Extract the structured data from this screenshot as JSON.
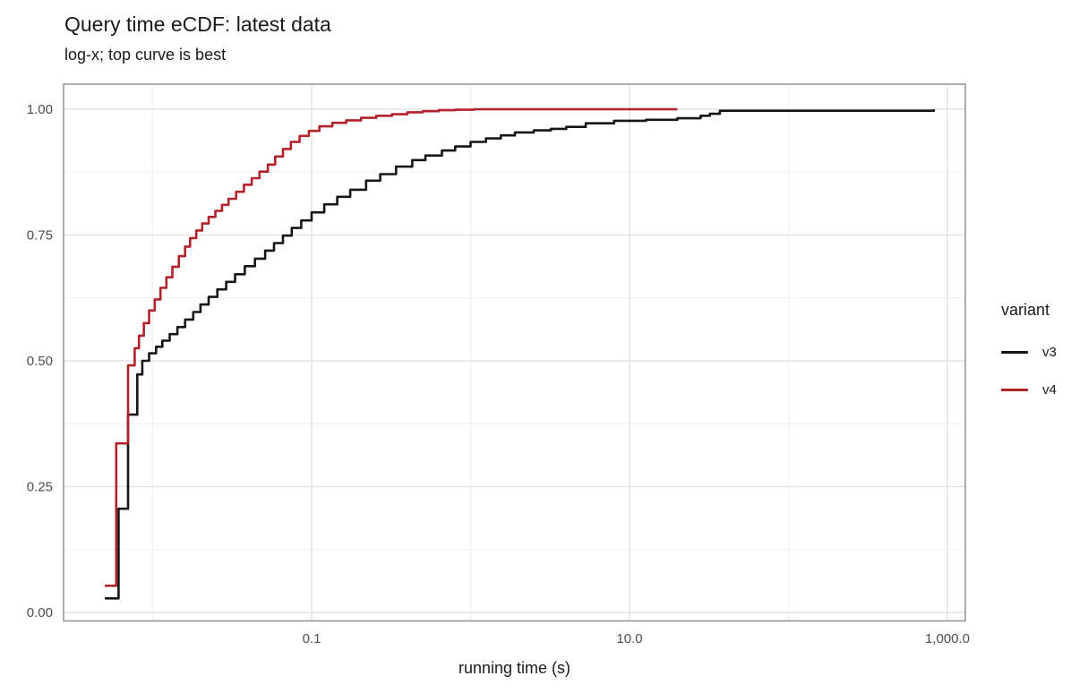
{
  "title": "Query time eCDF: latest data",
  "subtitle": "log-x; top curve is best",
  "axes": {
    "x_label": "running time (s)",
    "x_tick_labels": [
      "0.1",
      "10.0",
      "1,000.0"
    ],
    "y_tick_labels": [
      "0.00",
      "0.25",
      "0.50",
      "0.75",
      "1.00"
    ]
  },
  "legend": {
    "title": "variant",
    "items": [
      {
        "label": "v3",
        "color": "#161616"
      },
      {
        "label": "v4",
        "color": "#b2222a"
      }
    ]
  },
  "chart_data": {
    "type": "line",
    "step": true,
    "x_scale": "log10",
    "title": "Query time eCDF: latest data",
    "subtitle": "log-x; top curve is best",
    "xlabel": "running time (s)",
    "ylabel": "",
    "xlim": [
      0.0028,
      1290
    ],
    "ylim": [
      -0.016,
      1.05
    ],
    "grid": true,
    "legend_position": "right",
    "legend_title": "variant",
    "x_ticks": [
      {
        "value": 0.1,
        "label": "0.1"
      },
      {
        "value": 10,
        "label": "10.0"
      },
      {
        "value": 1000,
        "label": "1,000.0"
      }
    ],
    "x_minor": [
      0.01,
      1,
      100
    ],
    "y_ticks": [
      {
        "value": 0,
        "label": "0.00"
      },
      {
        "value": 0.25,
        "label": "0.25"
      },
      {
        "value": 0.5,
        "label": "0.50"
      },
      {
        "value": 0.75,
        "label": "0.75"
      },
      {
        "value": 1,
        "label": "1.00"
      }
    ],
    "y_minor": [
      0.125,
      0.375,
      0.625,
      0.875
    ],
    "series": [
      {
        "name": "v3",
        "color": "#161616",
        "points": [
          [
            0.005,
            0.028
          ],
          [
            0.0061,
            0.206
          ],
          [
            0.007,
            0.393
          ],
          [
            0.008,
            0.473
          ],
          [
            0.0086,
            0.5
          ],
          [
            0.0095,
            0.515
          ],
          [
            0.0105,
            0.528
          ],
          [
            0.0115,
            0.54
          ],
          [
            0.0128,
            0.553
          ],
          [
            0.0143,
            0.567
          ],
          [
            0.016,
            0.582
          ],
          [
            0.018,
            0.597
          ],
          [
            0.02,
            0.612
          ],
          [
            0.0225,
            0.627
          ],
          [
            0.0255,
            0.642
          ],
          [
            0.029,
            0.657
          ],
          [
            0.033,
            0.672
          ],
          [
            0.038,
            0.688
          ],
          [
            0.044,
            0.703
          ],
          [
            0.051,
            0.719
          ],
          [
            0.058,
            0.734
          ],
          [
            0.066,
            0.749
          ],
          [
            0.075,
            0.764
          ],
          [
            0.086,
            0.779
          ],
          [
            0.1,
            0.795
          ],
          [
            0.12,
            0.811
          ],
          [
            0.145,
            0.826
          ],
          [
            0.175,
            0.84
          ],
          [
            0.22,
            0.858
          ],
          [
            0.27,
            0.871
          ],
          [
            0.34,
            0.886
          ],
          [
            0.43,
            0.899
          ],
          [
            0.52,
            0.908
          ],
          [
            0.66,
            0.918
          ],
          [
            0.8,
            0.926
          ],
          [
            1.0,
            0.935
          ],
          [
            1.25,
            0.942
          ],
          [
            1.55,
            0.948
          ],
          [
            1.9,
            0.954
          ],
          [
            2.5,
            0.958
          ],
          [
            3.2,
            0.961
          ],
          [
            4.0,
            0.965
          ],
          [
            5.3,
            0.972
          ],
          [
            8.0,
            0.977
          ],
          [
            12.7,
            0.979
          ],
          [
            20,
            0.982
          ],
          [
            28,
            0.987
          ],
          [
            32,
            0.991
          ],
          [
            37,
            0.997
          ],
          [
            820,
            1.0
          ]
        ]
      },
      {
        "name": "v4",
        "color": "#b2222a",
        "points": [
          [
            0.005,
            0.053
          ],
          [
            0.0059,
            0.336
          ],
          [
            0.007,
            0.491
          ],
          [
            0.0077,
            0.525
          ],
          [
            0.0082,
            0.55
          ],
          [
            0.0088,
            0.575
          ],
          [
            0.0095,
            0.6
          ],
          [
            0.0103,
            0.622
          ],
          [
            0.0112,
            0.645
          ],
          [
            0.0122,
            0.666
          ],
          [
            0.0133,
            0.687
          ],
          [
            0.0146,
            0.708
          ],
          [
            0.016,
            0.727
          ],
          [
            0.0172,
            0.744
          ],
          [
            0.0188,
            0.759
          ],
          [
            0.0205,
            0.773
          ],
          [
            0.0225,
            0.786
          ],
          [
            0.0248,
            0.798
          ],
          [
            0.0273,
            0.81
          ],
          [
            0.03,
            0.822
          ],
          [
            0.0335,
            0.836
          ],
          [
            0.0375,
            0.85
          ],
          [
            0.042,
            0.863
          ],
          [
            0.047,
            0.876
          ],
          [
            0.053,
            0.89
          ],
          [
            0.059,
            0.906
          ],
          [
            0.066,
            0.921
          ],
          [
            0.074,
            0.935
          ],
          [
            0.084,
            0.947
          ],
          [
            0.096,
            0.957
          ],
          [
            0.112,
            0.966
          ],
          [
            0.135,
            0.973
          ],
          [
            0.165,
            0.978
          ],
          [
            0.205,
            0.983
          ],
          [
            0.255,
            0.987
          ],
          [
            0.32,
            0.99
          ],
          [
            0.4,
            0.994
          ],
          [
            0.5,
            0.996
          ],
          [
            0.63,
            0.998
          ],
          [
            0.8,
            0.999
          ],
          [
            1.05,
            1.0
          ],
          [
            20,
            1.0
          ]
        ]
      }
    ]
  }
}
